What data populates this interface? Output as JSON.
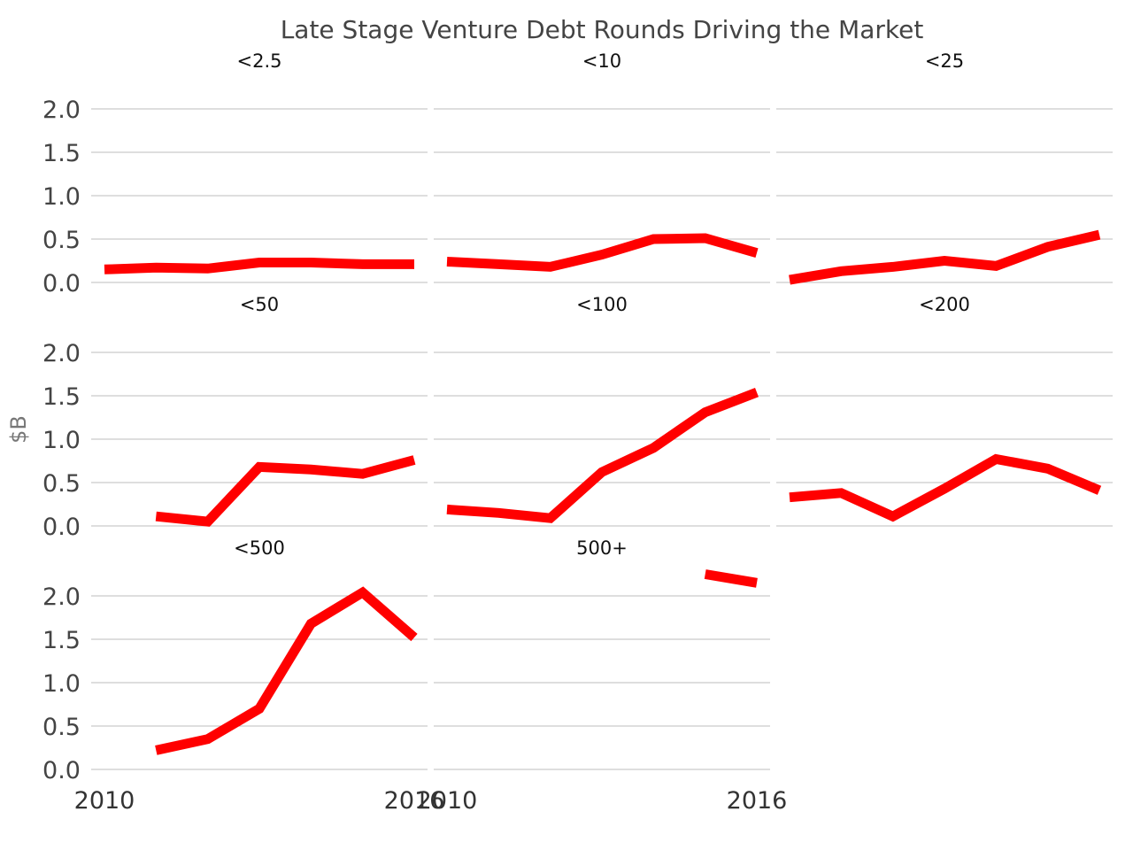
{
  "chart_data": {
    "type": "line",
    "title": "Late Stage Venture Debt Rounds Driving the Market",
    "ylabel": "$B",
    "xlabel": "",
    "xlim": [
      2010,
      2016
    ],
    "ylim": [
      0,
      2.0
    ],
    "yticks": [
      "0.0",
      "0.5",
      "1.0",
      "1.5",
      "2.0"
    ],
    "xticks": [
      {
        "value": 2010,
        "label": "2010"
      },
      {
        "value": 2016,
        "label": "2016"
      }
    ],
    "grid": true,
    "line_color": "#ff0000",
    "facets": [
      {
        "name": "<2.5",
        "x": [
          2010,
          2011,
          2012,
          2013,
          2014,
          2015,
          2016
        ],
        "values": [
          0.15,
          0.17,
          0.16,
          0.23,
          0.23,
          0.21,
          0.21
        ]
      },
      {
        "name": "<10",
        "x": [
          2010,
          2011,
          2012,
          2013,
          2014,
          2015,
          2016
        ],
        "values": [
          0.24,
          0.21,
          0.18,
          0.32,
          0.5,
          0.51,
          0.34
        ]
      },
      {
        "name": "<25",
        "x": [
          2010,
          2011,
          2012,
          2013,
          2014,
          2015,
          2016
        ],
        "values": [
          0.03,
          0.13,
          0.18,
          0.25,
          0.19,
          0.41,
          0.55
        ]
      },
      {
        "name": "<50",
        "x": [
          2011,
          2012,
          2013,
          2014,
          2015,
          2016
        ],
        "values": [
          0.11,
          0.05,
          0.68,
          0.65,
          0.6,
          0.76
        ]
      },
      {
        "name": "<100",
        "x": [
          2010,
          2011,
          2012,
          2013,
          2014,
          2015,
          2016
        ],
        "values": [
          0.19,
          0.15,
          0.09,
          0.62,
          0.9,
          1.31,
          1.54
        ]
      },
      {
        "name": "<200",
        "x": [
          2010,
          2011,
          2012,
          2013,
          2014,
          2015,
          2016
        ],
        "values": [
          0.33,
          0.38,
          0.11,
          0.43,
          0.77,
          0.66,
          0.41
        ]
      },
      {
        "name": "<500",
        "x": [
          2011,
          2012,
          2013,
          2014,
          2015,
          2016
        ],
        "values": [
          0.22,
          0.35,
          0.7,
          1.68,
          2.04,
          1.52
        ]
      },
      {
        "name": "500+",
        "x": [
          2015,
          2016
        ],
        "values": [
          2.25,
          2.15
        ]
      }
    ]
  }
}
